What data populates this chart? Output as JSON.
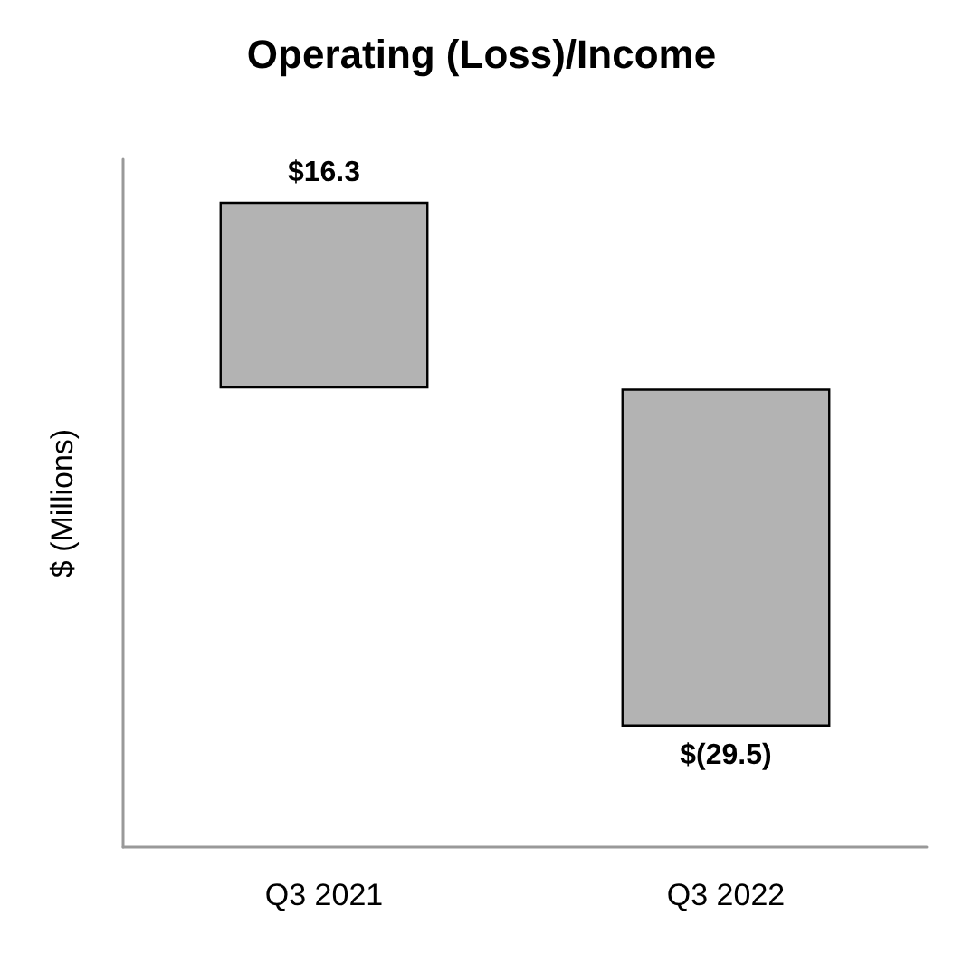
{
  "chart_data": {
    "type": "bar",
    "title": "Operating (Loss)/Income",
    "ylabel": "$ (Millions)",
    "categories": [
      "Q3 2021",
      "Q3 2022"
    ],
    "values": [
      16.3,
      -29.5
    ],
    "color": "#b3b3b3",
    "value_labels": [
      "$16.3",
      "$(29.5)"
    ],
    "ylim": [
      -40,
      20
    ],
    "tick_labels": "x",
    "grid": false
  }
}
